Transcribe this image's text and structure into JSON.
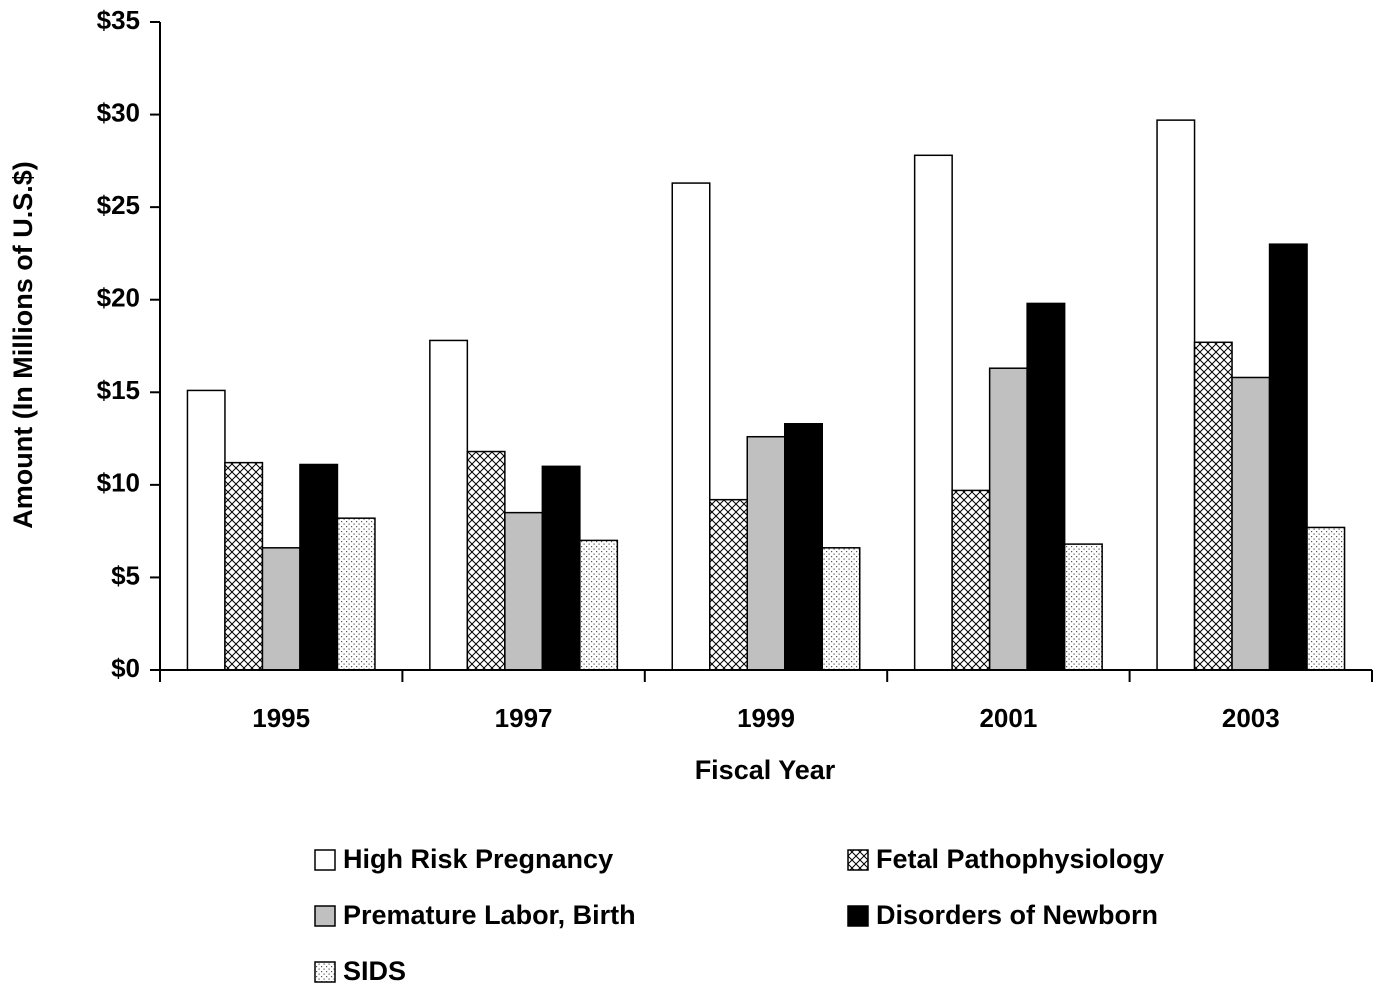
{
  "chart_data": {
    "type": "bar",
    "x_label": "Fiscal Year",
    "y_label": "Amount (In Millions of U.S.$)",
    "categories": [
      "1995",
      "1997",
      "1999",
      "2001",
      "2003"
    ],
    "series": [
      {
        "name": "High Risk Pregnancy",
        "color": "#ffffff",
        "pattern": "solid",
        "values": [
          15.1,
          17.8,
          26.3,
          27.8,
          29.7
        ]
      },
      {
        "name": "Fetal Pathophysiology",
        "color": "#ffffff",
        "pattern": "crosshatch",
        "values": [
          11.2,
          11.8,
          9.2,
          9.7,
          17.7
        ]
      },
      {
        "name": "Premature Labor, Birth",
        "color": "#c0c0c0",
        "pattern": "solid",
        "values": [
          6.6,
          8.5,
          12.6,
          16.3,
          15.8
        ]
      },
      {
        "name": "Disorders of Newborn",
        "color": "#000000",
        "pattern": "solid",
        "values": [
          11.1,
          11.0,
          13.3,
          19.8,
          23.0
        ]
      },
      {
        "name": "SIDS",
        "color": "#ffffff",
        "pattern": "dots",
        "values": [
          8.2,
          7.0,
          6.6,
          6.8,
          7.7
        ]
      }
    ],
    "ylim": [
      0,
      35
    ],
    "yticks": [
      {
        "value": 0,
        "label": "$0"
      },
      {
        "value": 5,
        "label": "$5"
      },
      {
        "value": 10,
        "label": "$10"
      },
      {
        "value": 15,
        "label": "$15"
      },
      {
        "value": 20,
        "label": "$20"
      },
      {
        "value": 25,
        "label": "$25"
      },
      {
        "value": 30,
        "label": "$30"
      },
      {
        "value": 35,
        "label": "$35"
      }
    ],
    "grid": false,
    "legend_position": "bottom"
  }
}
